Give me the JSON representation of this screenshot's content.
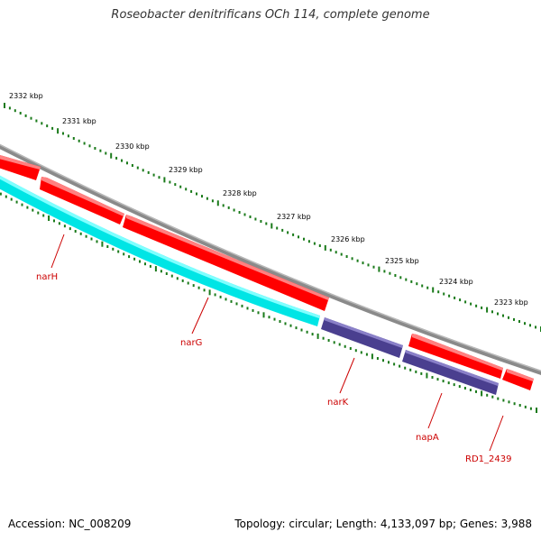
{
  "title": "Roseobacter denitrificans OCh 114, complete genome",
  "accession": "Accession: NC_008209",
  "summary": "Topology: circular; Length: 4,133,097 bp; Genes: 3,988",
  "ruler_labels": [
    "2332 kbp",
    "2331 kbp",
    "2330 kbp",
    "2329 kbp",
    "2328 kbp",
    "2327 kbp",
    "2326 kbp",
    "2325 kbp",
    "2324 kbp",
    "2323 kbp"
  ],
  "genes": [
    {
      "name": "narH"
    },
    {
      "name": "narG"
    },
    {
      "name": "narK"
    },
    {
      "name": "napA"
    },
    {
      "name": "RD1_2439"
    }
  ],
  "colors": {
    "backbone": "#8a8a8a",
    "forward_gene": "#ff0000",
    "cyan_gene": "#00e5e5",
    "purple_gene": "#4a3f8f",
    "ticks": "#1a7a1a",
    "gene_label": "#cc0000"
  }
}
